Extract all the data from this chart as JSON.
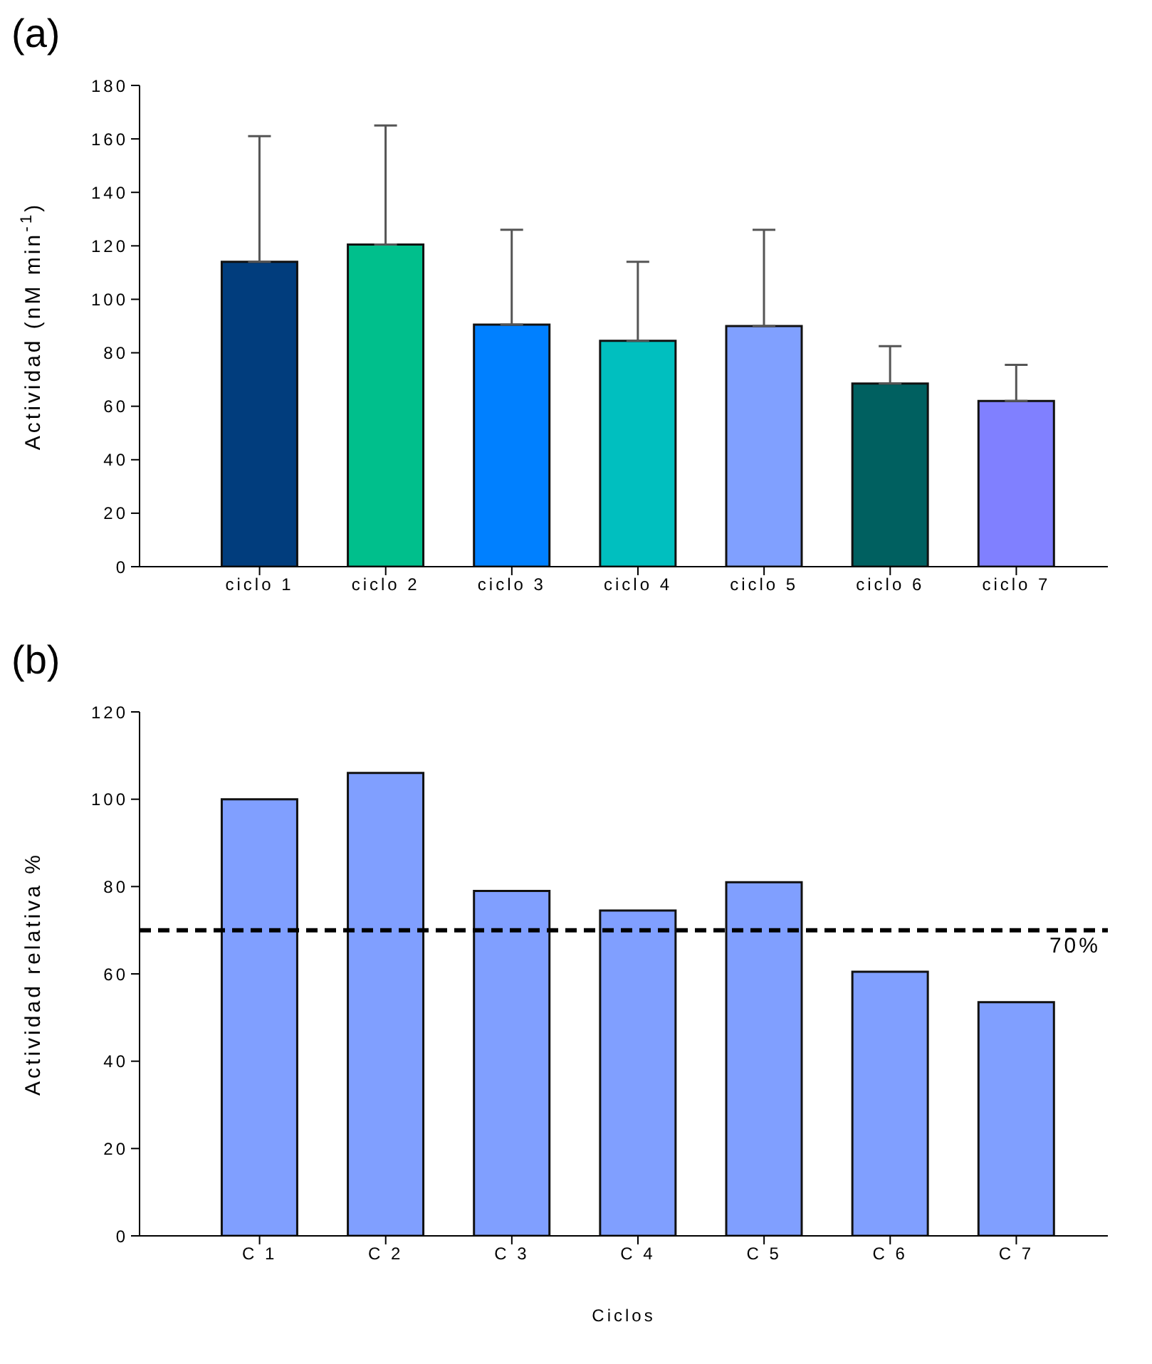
{
  "chart_data": [
    {
      "type": "bar",
      "title": "(a)",
      "ylabel": "Actividad (nM min$^{-1}$)",
      "categories": [
        "ciclo 1",
        "ciclo 2",
        "ciclo 3",
        "ciclo 4",
        "ciclo 5",
        "ciclo 6",
        "ciclo 7"
      ],
      "values": [
        114,
        120.5,
        90.5,
        84.5,
        90,
        68.5,
        62
      ],
      "colors": [
        "#013d7d",
        "#00bf8c",
        "#0080ff",
        "#00bfbf",
        "#80a0ff",
        "#006060",
        "#8080ff"
      ],
      "errors": [
        [
          114,
          161
        ],
        [
          120.5,
          165
        ],
        [
          90.5,
          126
        ],
        [
          84.5,
          114
        ],
        [
          90,
          126
        ],
        [
          68.5,
          82.5
        ],
        [
          62,
          75.5
        ]
      ],
      "ylim": [
        0,
        180
      ],
      "yticks": [
        0,
        20,
        40,
        60,
        80,
        100,
        120,
        140,
        160,
        180
      ]
    },
    {
      "type": "bar",
      "title": "(b)",
      "xlabel": "Ciclos",
      "ylabel": "Actividad relativa %",
      "categories": [
        "C 1",
        "C 2",
        "C 3",
        "C 4",
        "C 5",
        "C 6",
        "C 7"
      ],
      "values": [
        100,
        106,
        79,
        74.5,
        81,
        60.5,
        53.5
      ],
      "color": "#809fff",
      "ylim": [
        0,
        120
      ],
      "yticks": [
        0,
        20,
        40,
        60,
        80,
        100,
        120
      ],
      "ref_lines": [
        {
          "axis": "y",
          "value": 70,
          "label": "70%",
          "color": "#000000",
          "line_style": "dashed"
        }
      ]
    }
  ]
}
